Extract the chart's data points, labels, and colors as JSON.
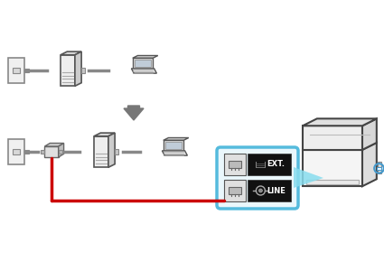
{
  "bg_color": "#ffffff",
  "arrow_color": "#777777",
  "red_line_color": "#cc0000",
  "blue_highlight_color": "#55bbdd",
  "fig_width": 4.25,
  "fig_height": 3.0,
  "dpi": 100,
  "ext_label": "EXT.",
  "line_label": "LINE"
}
